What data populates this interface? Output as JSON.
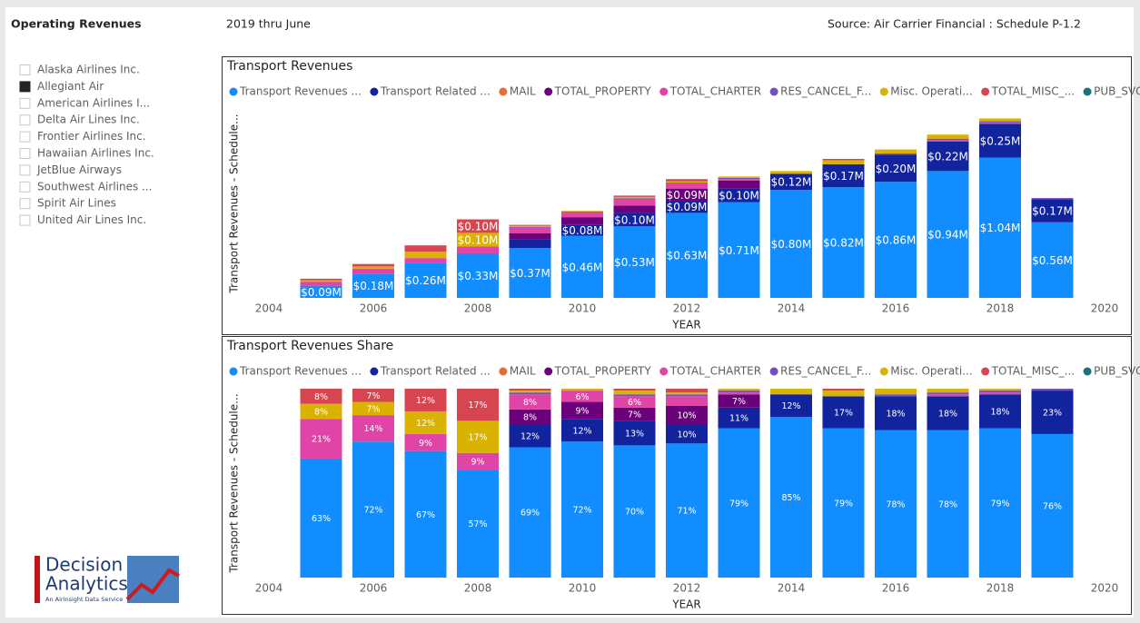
{
  "header": {
    "title": "Operating Revenues",
    "period": "2019 thru June",
    "source": "Source: Air Carrier Financial : Schedule P-1.2"
  },
  "slicer": {
    "items": [
      {
        "label": "Alaska Airlines Inc.",
        "checked": false
      },
      {
        "label": "Allegiant Air",
        "checked": true
      },
      {
        "label": "American Airlines I...",
        "checked": false
      },
      {
        "label": "Delta Air Lines Inc.",
        "checked": false
      },
      {
        "label": "Frontier Airlines Inc.",
        "checked": false
      },
      {
        "label": "Hawaiian Airlines Inc.",
        "checked": false
      },
      {
        "label": "JetBlue Airways",
        "checked": false
      },
      {
        "label": "Southwest Airlines ...",
        "checked": false
      },
      {
        "label": "Spirit Air Lines",
        "checked": false
      },
      {
        "label": "United Air Lines Inc.",
        "checked": false
      }
    ]
  },
  "logo": {
    "line1": "Decision",
    "line2": "Analytics",
    "tagline": "An AirInsight Data Service"
  },
  "chart_data": [
    {
      "type": "bar",
      "stacked": true,
      "title": "Transport Revenues",
      "xlabel": "YEAR",
      "ylabel": "Transport Revenues - Schedule...",
      "x": [
        2005,
        2006,
        2007,
        2008,
        2009,
        2010,
        2011,
        2012,
        2013,
        2014,
        2015,
        2016,
        2017,
        2018,
        2019
      ],
      "xlim": [
        2004,
        2020
      ],
      "xticks": [
        2004,
        2006,
        2008,
        2010,
        2012,
        2014,
        2016,
        2018,
        2020
      ],
      "ylim": [
        0,
        1.4
      ],
      "series": [
        {
          "name": "Transport Revenues ...",
          "color": "#118DFF",
          "values": [
            0.09,
            0.18,
            0.26,
            0.33,
            0.37,
            0.46,
            0.53,
            0.63,
            0.71,
            0.8,
            0.82,
            0.86,
            0.94,
            1.04,
            0.56
          ],
          "value_labels": [
            "$0.09M",
            "$0.18M",
            "$0.26M",
            "$0.33M",
            "$0.37M",
            "$0.46M",
            "$0.53M",
            "$0.63M",
            "$0.71M",
            "$0.80M",
            "$0.82M",
            "$0.86M",
            "$0.94M",
            "$1.04M",
            "$0.56M"
          ]
        },
        {
          "name": "Transport Related ...",
          "color": "#12239E",
          "values": [
            0,
            0,
            0,
            0,
            0.065,
            0.08,
            0.1,
            0.09,
            0.1,
            0.12,
            0.17,
            0.2,
            0.22,
            0.25,
            0.17
          ],
          "value_labels": [
            null,
            null,
            null,
            null,
            null,
            "$0.08M",
            "$0.10M",
            "$0.09M",
            "$0.10M",
            "$0.12M",
            "$0.17M",
            "$0.20M",
            "$0.22M",
            "$0.25M",
            "$0.17M"
          ]
        },
        {
          "name": "MAIL",
          "color": "#E66C37",
          "values": [
            0,
            0,
            0,
            0,
            0,
            0,
            0,
            0,
            0,
            0,
            0,
            0,
            0,
            0,
            0
          ]
        },
        {
          "name": "TOTAL_PROPERTY",
          "color": "#6B007B",
          "values": [
            0,
            0,
            0,
            0,
            0.043,
            0.058,
            0.053,
            0.09,
            0.06,
            0,
            0,
            0,
            0,
            0,
            0
          ],
          "value_labels": [
            null,
            null,
            null,
            null,
            null,
            null,
            null,
            "$0.09M",
            null,
            null,
            null,
            null,
            null,
            null,
            null
          ]
        },
        {
          "name": "TOTAL_CHARTER",
          "color": "#E044A7",
          "values": [
            0.03,
            0.035,
            0.035,
            0.052,
            0.043,
            0.038,
            0.045,
            0.04,
            0.01,
            0,
            0,
            0,
            0.01,
            0.01,
            0
          ]
        },
        {
          "name": "RES_CANCEL_F...",
          "color": "#744EC2",
          "values": [
            0,
            0,
            0,
            0,
            0.005,
            0.003,
            0.01,
            0.005,
            0.01,
            0,
            0,
            0.01,
            0.01,
            0.01,
            0.01
          ]
        },
        {
          "name": "Misc. Operati...",
          "color": "#D9B300",
          "values": [
            0.011,
            0.018,
            0.047,
            0.1,
            0.008,
            0.006,
            0.01,
            0.01,
            0.01,
            0.02,
            0.03,
            0.03,
            0.03,
            0.02,
            0
          ],
          "value_labels": [
            null,
            null,
            null,
            "$0.10M",
            null,
            null,
            null,
            null,
            null,
            null,
            null,
            null,
            null,
            null,
            null
          ]
        },
        {
          "name": "TOTAL_MISC_...",
          "color": "#D64550",
          "values": [
            0.011,
            0.018,
            0.047,
            0.1,
            0.007,
            0,
            0.01,
            0.015,
            0,
            0,
            0.01,
            0,
            0,
            0,
            0
          ],
          "value_labels": [
            null,
            null,
            null,
            "$0.10M",
            null,
            null,
            null,
            null,
            null,
            null,
            null,
            null,
            null,
            null,
            null
          ]
        },
        {
          "name": "PUB_SVC_RE...",
          "color": "#197278",
          "values": [
            0,
            0,
            0,
            0,
            0,
            0,
            0,
            0,
            0,
            0,
            0,
            0,
            0,
            0,
            0
          ]
        }
      ]
    },
    {
      "type": "bar",
      "stacked": true,
      "title": "Transport Revenues Share",
      "xlabel": "YEAR",
      "ylabel": "Transport Revenues - Schedule...",
      "x": [
        2005,
        2006,
        2007,
        2008,
        2009,
        2010,
        2011,
        2012,
        2013,
        2014,
        2015,
        2016,
        2017,
        2018,
        2019
      ],
      "xlim": [
        2004,
        2020
      ],
      "xticks": [
        2004,
        2006,
        2008,
        2010,
        2012,
        2014,
        2016,
        2018,
        2020
      ],
      "ylim": [
        0,
        100
      ],
      "series": [
        {
          "name": "Transport Revenues ...",
          "color": "#118DFF",
          "values": [
            63,
            72,
            67,
            57,
            69,
            72,
            70,
            71,
            79,
            85,
            79,
            78,
            78,
            79,
            76
          ],
          "value_labels": [
            "63%",
            "72%",
            "67%",
            "57%",
            "69%",
            "72%",
            "70%",
            "71%",
            "79%",
            "85%",
            "79%",
            "78%",
            "78%",
            "79%",
            "76%"
          ]
        },
        {
          "name": "Transport Related ...",
          "color": "#12239E",
          "values": [
            0,
            0,
            0,
            0,
            12,
            12,
            13,
            10,
            11,
            12,
            17,
            18,
            18,
            18,
            23
          ],
          "value_labels": [
            null,
            null,
            null,
            null,
            "12%",
            "12%",
            "13%",
            "10%",
            "11%",
            "12%",
            "17%",
            "18%",
            "18%",
            "18%",
            "23%"
          ]
        },
        {
          "name": "MAIL",
          "color": "#E66C37",
          "values": [
            0,
            0,
            0,
            0,
            0,
            0,
            0,
            0,
            0,
            0,
            0,
            0,
            0,
            0,
            0
          ]
        },
        {
          "name": "TOTAL_PROPERTY",
          "color": "#6B007B",
          "values": [
            0,
            0,
            0,
            0,
            8,
            9,
            7,
            10,
            7,
            0,
            0,
            0,
            0,
            0,
            0
          ],
          "value_labels": [
            null,
            null,
            null,
            null,
            "8%",
            "9%",
            "7%",
            "10%",
            "7%",
            null,
            null,
            null,
            null,
            null,
            null
          ]
        },
        {
          "name": "TOTAL_CHARTER",
          "color": "#E044A7",
          "values": [
            21,
            14,
            9,
            9,
            8,
            6,
            6,
            5,
            1,
            0,
            0,
            0,
            1,
            1,
            0
          ],
          "value_labels": [
            "21%",
            "14%",
            "9%",
            "9%",
            "8%",
            "6%",
            "6%",
            null,
            null,
            null,
            null,
            null,
            null,
            null,
            null
          ]
        },
        {
          "name": "RES_CANCEL_F...",
          "color": "#744EC2",
          "values": [
            0,
            0,
            0,
            0,
            1,
            0,
            1,
            1,
            1,
            0,
            0,
            1,
            1,
            1,
            1
          ]
        },
        {
          "name": "Misc. Operati...",
          "color": "#D9B300",
          "values": [
            8,
            7,
            12,
            17,
            1,
            1,
            2,
            1,
            1,
            3,
            3,
            3,
            2,
            1,
            0
          ],
          "value_labels": [
            "8%",
            "7%",
            "12%",
            "17%",
            null,
            null,
            null,
            null,
            null,
            null,
            null,
            null,
            null,
            null,
            null
          ]
        },
        {
          "name": "TOTAL_MISC_...",
          "color": "#D64550",
          "values": [
            8,
            7,
            12,
            17,
            1,
            0,
            1,
            2,
            0,
            0,
            1,
            0,
            0,
            0,
            0
          ],
          "value_labels": [
            "8%",
            "7%",
            "12%",
            "17%",
            null,
            null,
            null,
            null,
            null,
            null,
            null,
            null,
            null,
            null,
            null
          ]
        },
        {
          "name": "PUB_SVC_RE...",
          "color": "#197278",
          "values": [
            0,
            0,
            0,
            0,
            0,
            0,
            0,
            0,
            0,
            0,
            0,
            0,
            0,
            0,
            0
          ]
        }
      ]
    }
  ]
}
